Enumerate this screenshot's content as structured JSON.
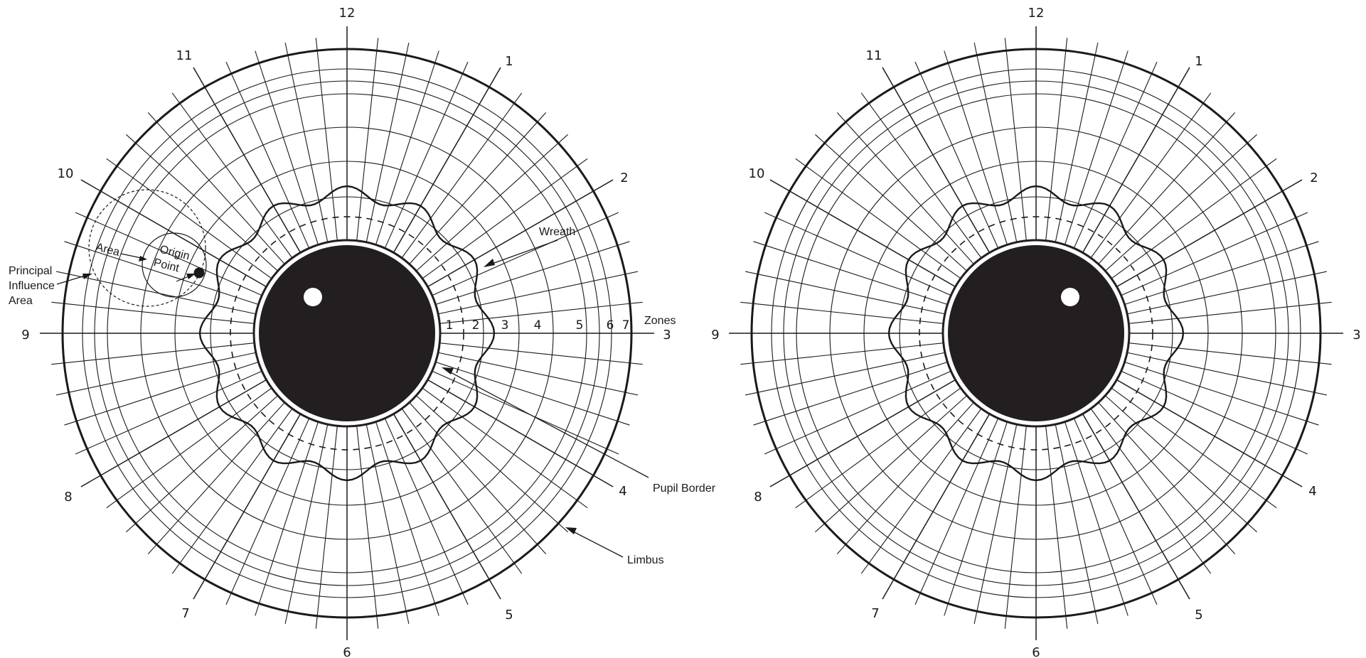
{
  "left_chart": {
    "clock_labels": [
      "12",
      "1",
      "2",
      "3",
      "4",
      "5",
      "6",
      "7",
      "8",
      "9",
      "10",
      "11"
    ],
    "zone_labels": [
      "1",
      "2",
      "3",
      "4",
      "5",
      "6",
      "7"
    ],
    "zones_label": "Zones",
    "annotations": {
      "wreath": "Wreath",
      "pupil_border": "Pupil Border",
      "limbus": "Limbus",
      "principal_influence_area": [
        "Principal",
        "Influence",
        "Area"
      ],
      "area": "Area",
      "origin_point": [
        "Origin",
        "Point"
      ]
    }
  },
  "right_chart": {
    "clock_labels": [
      "12",
      "1",
      "2",
      "3",
      "4",
      "5",
      "6",
      "7",
      "8",
      "9",
      "10",
      "11"
    ]
  },
  "colors": {
    "ink": "#1a1a1a",
    "pupil": "#231f20",
    "background": "#ffffff"
  }
}
